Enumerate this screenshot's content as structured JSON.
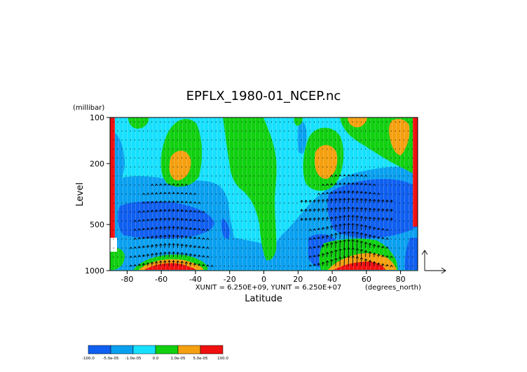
{
  "chart_data": {
    "type": "heatmap",
    "title": "EPFLX_1980-01_NCEP.nc",
    "xlabel": "Latitude",
    "ylabel": "Level",
    "x_units": "(degrees_north)",
    "y_units": "(millibar)",
    "xlim": [
      -90,
      90
    ],
    "y_scale": "log",
    "y_range": [
      1000,
      100
    ],
    "x_ticks": [
      -80,
      -60,
      -40,
      -20,
      0,
      20,
      40,
      60,
      80
    ],
    "y_ticks": [
      100,
      200,
      500,
      1000
    ],
    "vector_scale_text": "XUNIT = 6.250E+09, YUNIT = 6.250E+07",
    "contour_levels": [
      "-100.0",
      "-5.0e-05",
      "-1.0e-05",
      "0.0",
      "1.0e-05",
      "5.0e-05",
      "100.0"
    ],
    "colorbar_colors": [
      "#0f5ff0",
      "#0aa0f0",
      "#18e0ff",
      "#10d010",
      "#f5a010",
      "#f01010"
    ],
    "colors": {
      "dark_blue": "#0f5ff0",
      "blue": "#0aa0f0",
      "cyan": "#18e0ff",
      "green": "#10d010",
      "orange": "#f5a010",
      "red": "#f01010"
    }
  }
}
